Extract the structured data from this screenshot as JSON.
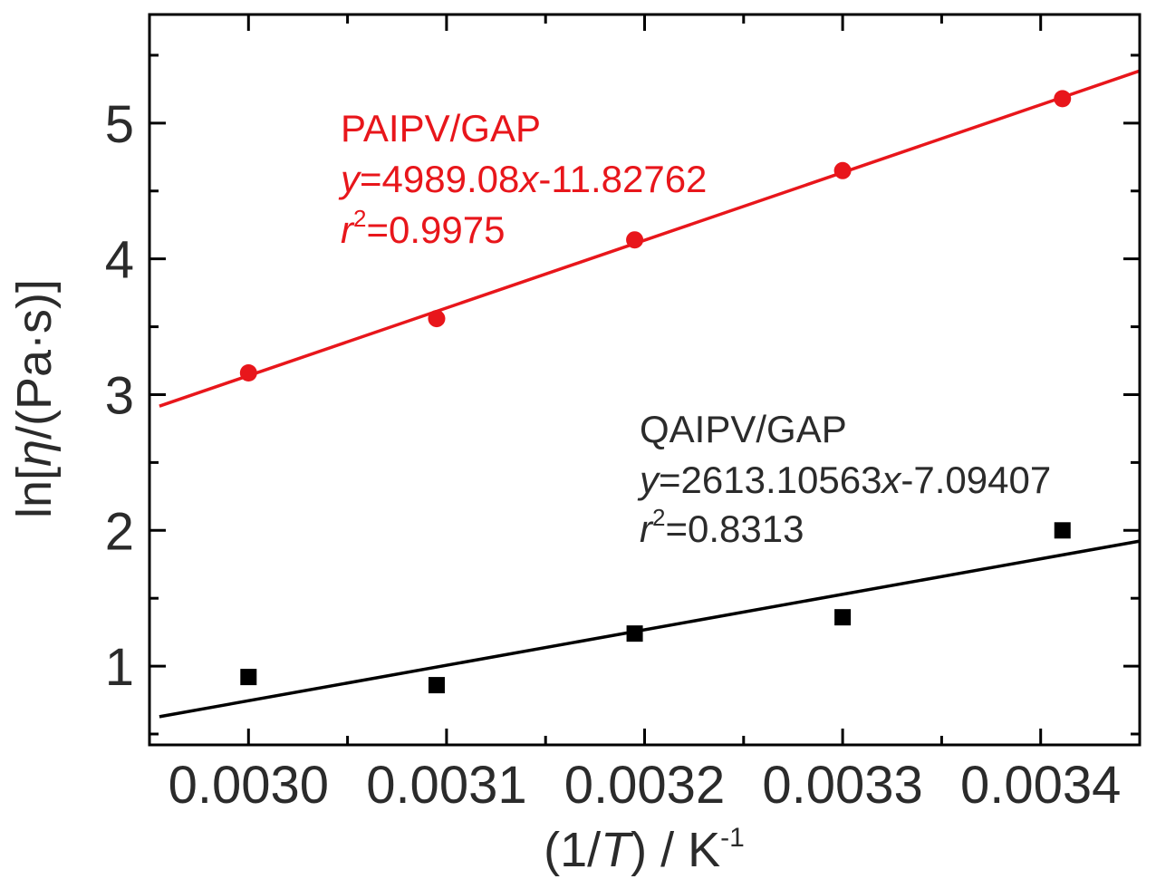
{
  "chart_data": {
    "type": "scatter",
    "xlabel": {
      "prefix": "(1/",
      "var": "T",
      "mid": ") / K",
      "sup": "-1"
    },
    "ylabel": {
      "prefix": "ln[",
      "var": "η",
      "suffix": "/(Pa·s)]"
    },
    "xlim": [
      0.00295,
      0.00345
    ],
    "ylim": [
      0.42,
      5.8
    ],
    "xticks": [
      {
        "value": 0.003,
        "label": "0.0030"
      },
      {
        "value": 0.0031,
        "label": "0.0031"
      },
      {
        "value": 0.0032,
        "label": "0.0032"
      },
      {
        "value": 0.0033,
        "label": "0.0033"
      },
      {
        "value": 0.0034,
        "label": "0.0034"
      }
    ],
    "xminor": [
      0.00305,
      0.00315,
      0.00325,
      0.00335
    ],
    "yticks": [
      {
        "value": 1,
        "label": "1"
      },
      {
        "value": 2,
        "label": "2"
      },
      {
        "value": 3,
        "label": "3"
      },
      {
        "value": 4,
        "label": "4"
      },
      {
        "value": 5,
        "label": "5"
      }
    ],
    "yminor": [
      0.5,
      1.5,
      2.5,
      3.5,
      4.5,
      5.5
    ],
    "grid": false,
    "series": [
      {
        "name": "PAIPV/GAP",
        "color": "#e8161b",
        "marker": "circle",
        "x": [
          0.003,
          0.003095,
          0.003195,
          0.0033,
          0.003411
        ],
        "y": [
          3.16,
          3.56,
          4.14,
          4.65,
          5.18
        ],
        "fit": {
          "slope": 4989.08,
          "intercept": -11.82762
        },
        "equation": {
          "y": "y",
          "eq": "=4989.08",
          "x": "x",
          "rest": "-11.82762"
        },
        "r2": {
          "r": "r",
          "sup": "2",
          "val": "=0.9975"
        }
      },
      {
        "name": "QAIPV/GAP",
        "color": "#000000",
        "marker": "square",
        "x": [
          0.003,
          0.003095,
          0.003195,
          0.0033,
          0.003411
        ],
        "y": [
          0.92,
          0.86,
          1.24,
          1.36,
          2.0
        ],
        "fit": {
          "slope": 2613.10563,
          "intercept": -7.09407
        },
        "equation": {
          "y": "y",
          "eq": "=2613.10563",
          "x": "x",
          "rest": "-7.09407"
        },
        "r2": {
          "r": "r",
          "sup": "2",
          "val": "=0.8313"
        }
      }
    ]
  }
}
